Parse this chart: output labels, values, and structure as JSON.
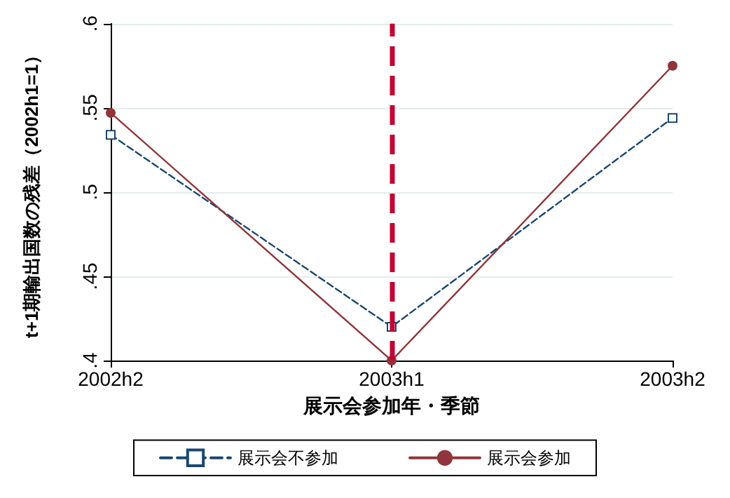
{
  "chart_data": {
    "type": "line",
    "xlabel": "展示会参加年・季節",
    "ylabel": "t+1期輸出国数の残差（2002h1=1）",
    "categories": [
      "2002h2",
      "2003h1",
      "2003h2"
    ],
    "series": [
      {
        "name": "展示会不参加",
        "color": "#1a476f",
        "values": [
          0.534,
          0.42,
          0.544
        ],
        "marker": "square",
        "line_style": "dashed"
      },
      {
        "name": "展示会参加",
        "color": "#90353b",
        "values": [
          0.547,
          0.4,
          0.575
        ],
        "marker": "circle",
        "line_style": "solid"
      }
    ],
    "ylim": [
      0.4,
      0.6
    ],
    "yticks": [
      {
        "value": 0.4,
        "label": ".4"
      },
      {
        "value": 0.45,
        "label": ".45"
      },
      {
        "value": 0.5,
        "label": ".5"
      },
      {
        "value": 0.55,
        "label": ".55"
      },
      {
        "value": 0.6,
        "label": ".6"
      }
    ],
    "grid": "y",
    "legend": "bottom",
    "ref_lines": [
      {
        "axis": "x",
        "value": "2003h1",
        "color": "#c10534",
        "line_style": "dashed"
      }
    ]
  }
}
